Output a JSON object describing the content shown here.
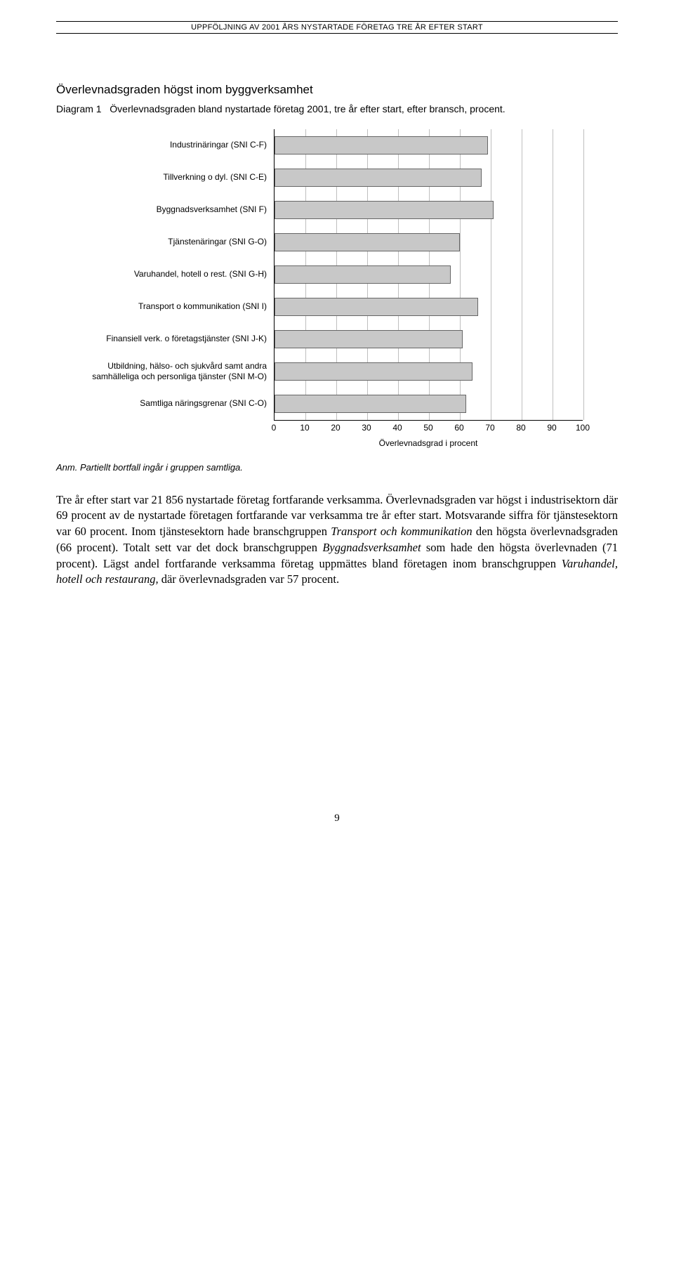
{
  "header": {
    "running_title": "UPPFÖLJNING AV 2001 ÅRS NYSTARTADE FÖRETAG TRE ÅR EFTER START"
  },
  "section_title": "Överlevnadsgraden högst inom byggverksamhet",
  "diagram": {
    "label": "Diagram 1",
    "caption": "Överlevnadsgraden bland nystartade företag 2001, tre år efter start, efter bransch, procent."
  },
  "chart": {
    "type": "bar",
    "orientation": "horizontal",
    "xlim": [
      0,
      100
    ],
    "xtick_step": 10,
    "xticks": [
      0,
      10,
      20,
      30,
      40,
      50,
      60,
      70,
      80,
      90,
      100
    ],
    "xlabel": "Överlevnadsgrad i procent",
    "bar_color": "#c8c8c8",
    "bar_border": "#666666",
    "grid_color": "#bfbfbf",
    "background_color": "#ffffff",
    "label_fontsize": 12,
    "categories": [
      "Industrinäringar (SNI C-F)",
      "Tillverkning o dyl. (SNI C-E)",
      "Byggnadsverksamhet (SNI F)",
      "Tjänstenäringar (SNI G-O)",
      "Varuhandel, hotell o rest. (SNI G-H)",
      "Transport o kommunikation (SNI I)",
      "Finansiell verk. o företagstjänster (SNI J-K)",
      "Utbildning, hälso- och sjukvård samt andra samhälleliga och personliga tjänster (SNI M-O)",
      "Samtliga näringsgrenar (SNI C-O)"
    ],
    "values": [
      69,
      67,
      71,
      60,
      57,
      66,
      61,
      64,
      62
    ]
  },
  "footnote": "Anm. Partiellt bortfall ingår i gruppen samtliga.",
  "body_paragraph_parts": [
    {
      "t": "text",
      "v": "Tre år efter start var 21 856 nystartade företag fortfarande verksamma. Överlevnadsgraden var högst i industrisektorn där 69 procent av de nystartade företagen fortfarande var verksamma tre år efter start. Motsvarande siffra för tjänstesektorn var 60 procent. Inom tjänstesektorn hade branschgruppen "
    },
    {
      "t": "em",
      "v": "Transport och kommunikation"
    },
    {
      "t": "text",
      "v": " den högsta överlevnadsgraden (66 procent). Totalt sett var det dock branschgruppen "
    },
    {
      "t": "em",
      "v": "Byggnadsverksamhet"
    },
    {
      "t": "text",
      "v": " som hade den högsta överlevnaden (71 procent). Lägst andel fortfarande verksamma företag uppmättes bland företagen inom branschgruppen "
    },
    {
      "t": "em",
      "v": "Varuhandel, hotell och restaurang,"
    },
    {
      "t": "text",
      "v": " där överlevnadsgraden var 57 procent."
    }
  ],
  "page_number": "9"
}
